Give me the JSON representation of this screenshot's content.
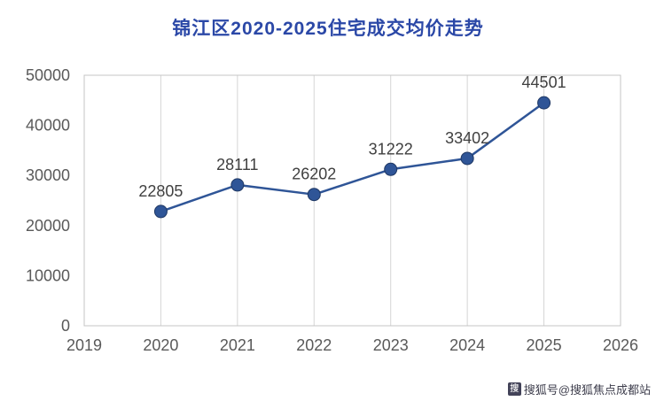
{
  "chart_data": {
    "type": "line",
    "title": "锦江区2020-2025住宅成交均价走势",
    "categories": [
      2020,
      2021,
      2022,
      2023,
      2024,
      2025
    ],
    "values": [
      22805,
      28111,
      26202,
      31222,
      33402,
      44501
    ],
    "x_axis_ticks": [
      2019,
      2020,
      2021,
      2022,
      2023,
      2024,
      2025,
      2026
    ],
    "y_axis_ticks": [
      0,
      10000,
      20000,
      30000,
      40000,
      50000
    ],
    "xlim": [
      2019,
      2026
    ],
    "ylim": [
      0,
      50000
    ],
    "xlabel": "",
    "ylabel": "",
    "legend": "none",
    "grid": "vertical",
    "line_color": "#2F5597",
    "marker_edge_color": "#1F3864",
    "data_label_color": "#404040",
    "axis_label_color": "#595959",
    "gridline_color": "#d6d6d6",
    "plot_border_color": "#c4c4c4",
    "title_color": "#2B48A7"
  },
  "watermark": {
    "icon_glyph": "搜",
    "text": "搜狐号@搜狐焦点成都站"
  }
}
